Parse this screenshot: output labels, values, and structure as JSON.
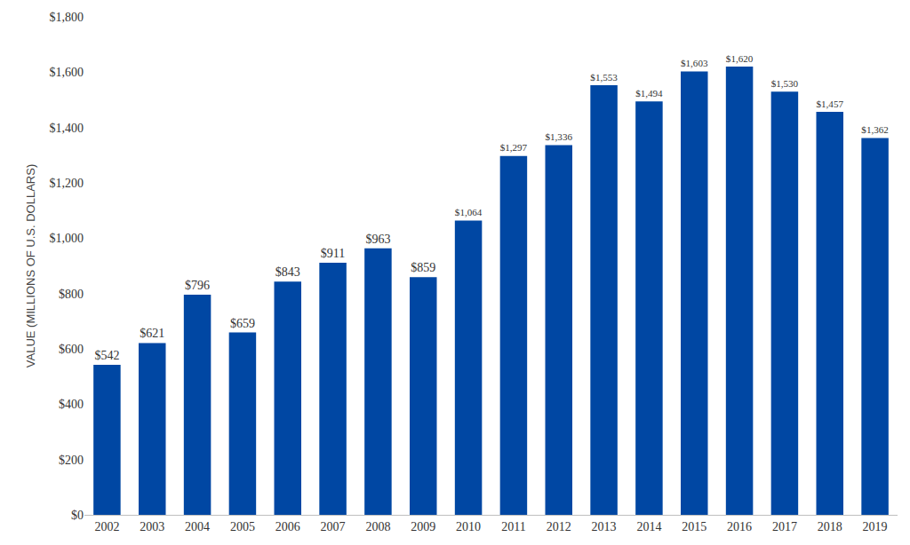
{
  "chart_data": {
    "type": "bar",
    "y_label": "VALUE (MILLIONS OF U.S. DOLLARS)",
    "categories": [
      "2002",
      "2003",
      "2004",
      "2005",
      "2006",
      "2007",
      "2008",
      "2009",
      "2010",
      "2011",
      "2012",
      "2013",
      "2014",
      "2015",
      "2016",
      "2017",
      "2018",
      "2019"
    ],
    "values": [
      542,
      621,
      796,
      659,
      843,
      911,
      963,
      859,
      1064,
      1297,
      1336,
      1553,
      1494,
      1603,
      1620,
      1530,
      1457,
      1362
    ],
    "value_labels": [
      "$542",
      "$621",
      "$796",
      "$659",
      "$843",
      "$911",
      "$963",
      "$859",
      "$1,064",
      "$1,297",
      "$1,336",
      "$1,553",
      "$1,494",
      "$1,603",
      "$1,620",
      "$1,530",
      "$1,457",
      "$1,362"
    ],
    "color": "#0047a3",
    "ylim": [
      0,
      1800
    ],
    "yticks": [
      {
        "value": 0,
        "label": "$0"
      },
      {
        "value": 200,
        "label": "$200"
      },
      {
        "value": 400,
        "label": "$400"
      },
      {
        "value": 600,
        "label": "$600"
      },
      {
        "value": 800,
        "label": "$800"
      },
      {
        "value": 1000,
        "label": "$1,000"
      },
      {
        "value": 1200,
        "label": "$1,200"
      },
      {
        "value": 1400,
        "label": "$1,400"
      },
      {
        "value": 1600,
        "label": "$1,600"
      },
      {
        "value": 1800,
        "label": "$1,800"
      }
    ],
    "grid": false,
    "data_labels": true
  }
}
